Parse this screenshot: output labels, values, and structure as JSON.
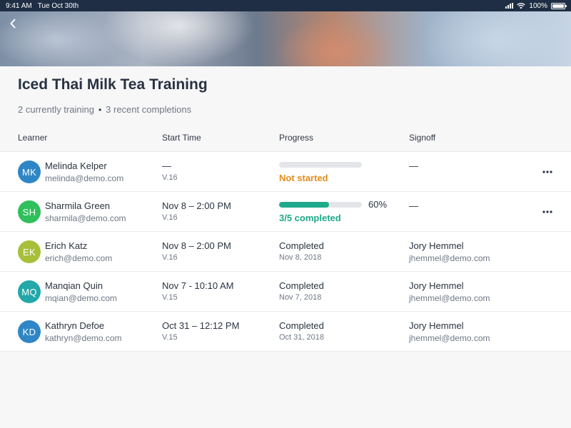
{
  "status_bar": {
    "time": "9:41 AM",
    "date": "Tue Oct 30th",
    "battery": "100%",
    "battery_level": 1.0
  },
  "header": {
    "back_icon": "chevron-left-icon",
    "title": "Iced Thai Milk Tea Training"
  },
  "summary": {
    "training": "2 currently training",
    "separator": "•",
    "completions": "3 recent completions"
  },
  "columns": {
    "learner": "Learner",
    "start_time": "Start Time",
    "progress": "Progress",
    "signoff": "Signoff"
  },
  "colors": {
    "accent_green": "#1ea98a",
    "not_started_orange": "#e08e1c"
  },
  "learners": [
    {
      "initials": "MK",
      "avatar_color": "#2f86c6",
      "name": "Melinda Kelper",
      "email": "melinda@demo.com",
      "start": "—",
      "version": "V.16",
      "progress_type": "not_started",
      "progress_fraction": 0,
      "progress_status": "Not started",
      "signoff_name": "—",
      "signoff_email": "",
      "has_menu": true
    },
    {
      "initials": "SH",
      "avatar_color": "#2fbf5b",
      "name": "Sharmila Green",
      "email": "sharmila@demo.com",
      "start": "Nov 8 – 2:00 PM",
      "version": "V.16",
      "progress_type": "in_progress",
      "progress_fraction": 0.6,
      "progress_percent": "60%",
      "progress_status": "3/5 completed",
      "signoff_name": "—",
      "signoff_email": "",
      "has_menu": true
    },
    {
      "initials": "EK",
      "avatar_color": "#a8bf3a",
      "name": "Erich Katz",
      "email": "erich@demo.com",
      "start": "Nov 8 – 2:00 PM",
      "version": "V.16",
      "progress_type": "completed",
      "progress_status": "Completed",
      "progress_date": "Nov 8, 2018",
      "signoff_name": "Jory Hemmel",
      "signoff_email": "jhemmel@demo.com",
      "has_menu": false
    },
    {
      "initials": "MQ",
      "avatar_color": "#22a8a8",
      "name": "Manqian Quin",
      "email": "mqian@demo.com",
      "start": "Nov 7 - 10:10 AM",
      "version": "V.15",
      "progress_type": "completed",
      "progress_status": "Completed",
      "progress_date": "Nov 7, 2018",
      "signoff_name": "Jory Hemmel",
      "signoff_email": "jhemmel@demo.com",
      "has_menu": false
    },
    {
      "initials": "KD",
      "avatar_color": "#2f86c6",
      "name": "Kathryn Defoe",
      "email": "kathryn@demo.com",
      "start": "Oct 31 – 12:12 PM",
      "version": "V.15",
      "progress_type": "completed",
      "progress_status": "Completed",
      "progress_date": "Oct 31, 2018",
      "signoff_name": "Jory Hemmel",
      "signoff_email": "jhemmel@demo.com",
      "has_menu": false
    }
  ]
}
